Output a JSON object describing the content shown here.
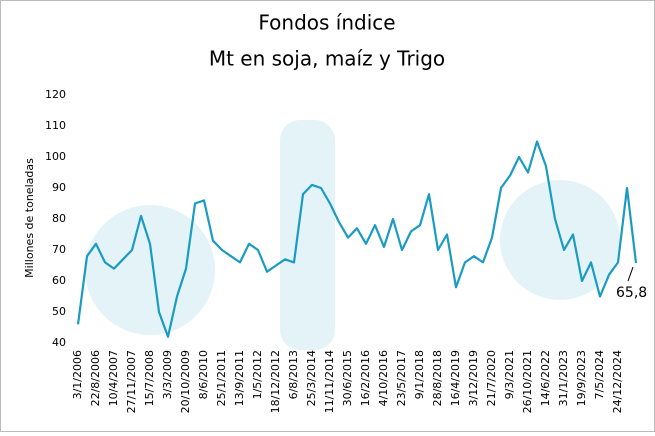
{
  "chart_data": {
    "type": "line",
    "title": "Fondos índice",
    "subtitle": "Mt en soja, maíz y Trigo",
    "y_label": "Millones de toneladas",
    "categories": [
      "3/1/2006",
      null,
      "22/8/2006",
      null,
      "10/4/2007",
      null,
      "27/11/2007",
      null,
      "15/7/2008",
      null,
      "3/3/2009",
      null,
      "20/10/2009",
      null,
      "8/6/2010",
      null,
      "25/1/2011",
      null,
      "13/9/2011",
      null,
      "1/5/2012",
      null,
      "18/12/2012",
      null,
      "6/8/2013",
      null,
      "25/3/2014",
      null,
      "11/11/2014",
      null,
      "30/6/2015",
      null,
      "16/2/2016",
      null,
      "4/10/2016",
      null,
      "23/5/2017",
      null,
      "9/1/2018",
      null,
      "28/8/2018",
      null,
      "16/4/2019",
      null,
      "3/12/2019",
      null,
      "21/7/2020",
      null,
      "9/3/2021",
      null,
      "26/10/2021",
      null,
      "14/6/2022",
      null,
      "31/1/2023",
      null,
      "19/9/2023",
      null,
      "7/5/2024",
      null,
      "24/12/2024",
      null,
      null
    ],
    "values": [
      46,
      68,
      72,
      66,
      64,
      67,
      70,
      81,
      72,
      50,
      42,
      55,
      64,
      85,
      86,
      73,
      70,
      68,
      66,
      72,
      70,
      63,
      65,
      67,
      66,
      88,
      91,
      90,
      85,
      79,
      74,
      77,
      72,
      78,
      71,
      80,
      70,
      76,
      78,
      88,
      70,
      75,
      58,
      66,
      68,
      66,
      74,
      90,
      94,
      100,
      95,
      105,
      97,
      80,
      70,
      75,
      60,
      66,
      55,
      62,
      66,
      90,
      65.8
    ],
    "end_label": "65,8",
    "color": "#1a9bc4",
    "ylim": [
      40,
      120
    ],
    "yticks": [
      40,
      50,
      60,
      70,
      80,
      90,
      100,
      110,
      120
    ],
    "grid": false
  }
}
